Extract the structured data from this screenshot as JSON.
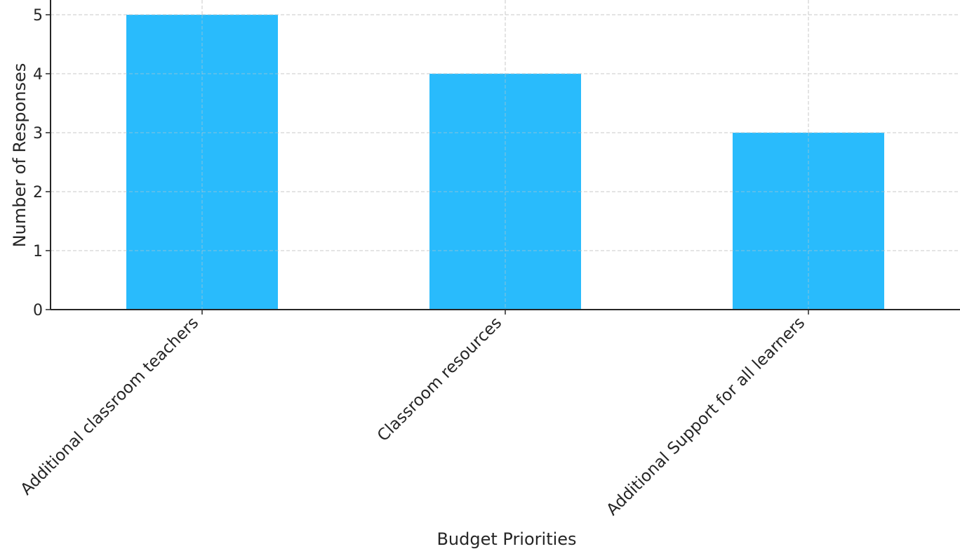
{
  "chart_data": {
    "type": "bar",
    "categories": [
      "Additional classroom teachers",
      "Classroom resources",
      "Additional Support for all learners"
    ],
    "values": [
      5,
      4,
      3
    ],
    "title": "",
    "xlabel": "Budget Priorities",
    "ylabel": "Number of Responses",
    "ylim": [
      0,
      5.25
    ],
    "yticks": [
      "0",
      "1",
      "2",
      "3",
      "4",
      "5"
    ],
    "grid": true,
    "bar_color": "#29BBFC",
    "grid_color": "#c8c8c8",
    "axis_color": "#262626"
  }
}
